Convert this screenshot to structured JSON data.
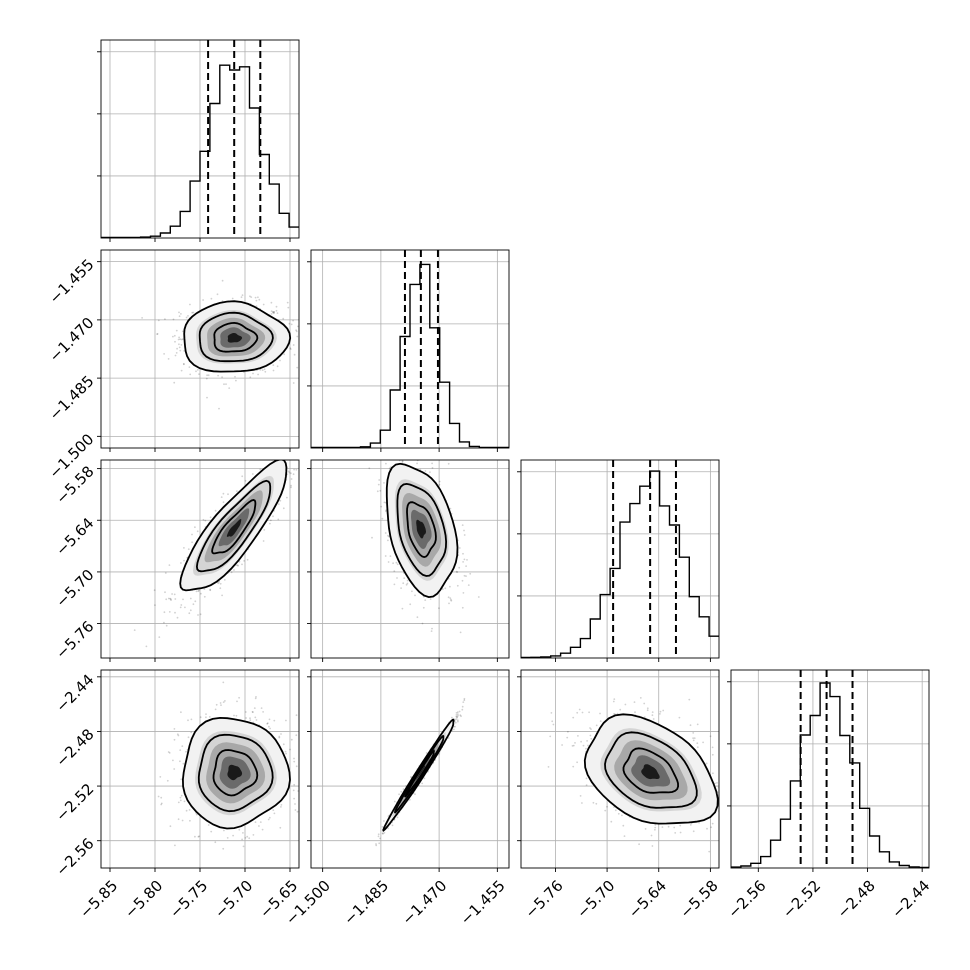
{
  "chart_data": {
    "type": "corner",
    "title": "",
    "parameters": [
      {
        "ticks": [
          -5.85,
          -5.8,
          -5.75,
          -5.7,
          -5.65
        ],
        "tick_labels": [
          "−5.85",
          "−5.80",
          "−5.75",
          "−5.70",
          "−5.65"
        ],
        "range": [
          -5.86,
          -5.64
        ],
        "median": -5.712,
        "q16": -5.741,
        "q84": -5.683,
        "std": 0.028
      },
      {
        "ticks": [
          -1.5,
          -1.485,
          -1.47,
          -1.455
        ],
        "tick_labels": [
          "−1.500",
          "−1.485",
          "−1.470",
          "−1.455"
        ],
        "range": [
          -1.503,
          -1.452
        ],
        "median": -1.4747,
        "q16": -1.4788,
        "q84": -1.4703,
        "std": 0.0043
      },
      {
        "ticks": [
          -5.76,
          -5.7,
          -5.64,
          -5.58
        ],
        "tick_labels": [
          "−5.76",
          "−5.70",
          "−5.64",
          "−5.58"
        ],
        "range": [
          -5.8,
          -5.57
        ],
        "median": -5.65,
        "q16": -5.693,
        "q84": -5.62,
        "std": 0.036
      },
      {
        "ticks": [
          -2.56,
          -2.52,
          -2.48,
          -2.44
        ],
        "tick_labels": [
          "−2.56",
          "−2.52",
          "−2.48",
          "−2.44"
        ],
        "range": [
          -2.58,
          -2.435
        ],
        "median": -2.51,
        "q16": -2.529,
        "q84": -2.491,
        "std": 0.019
      }
    ],
    "correlations": [
      {
        "pair": [
          0,
          1
        ],
        "rho": 0.0
      },
      {
        "pair": [
          0,
          2
        ],
        "rho": 0.85
      },
      {
        "pair": [
          1,
          2
        ],
        "rho": -0.35
      },
      {
        "pair": [
          0,
          3
        ],
        "rho": 0.0
      },
      {
        "pair": [
          1,
          3
        ],
        "rho": 0.99
      },
      {
        "pair": [
          2,
          3
        ],
        "rho": -0.35
      }
    ],
    "grid": true,
    "contour_levels": 3
  }
}
